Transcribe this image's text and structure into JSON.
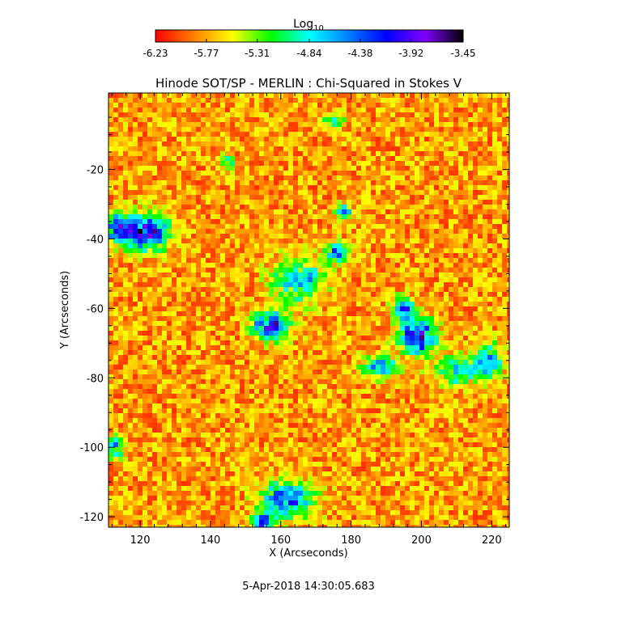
{
  "chart_data": {
    "type": "heatmap",
    "title": "Hinode SOT/SP - MERLIN : Chi-Squared in Stokes V",
    "xlabel": "X (Arcseconds)",
    "ylabel": "Y (Arcseconds)",
    "xlim": [
      111,
      225
    ],
    "ylim": [
      -123,
      2
    ],
    "x_ticks": [
      120,
      140,
      160,
      180,
      200,
      220
    ],
    "y_ticks": [
      -20,
      -40,
      -60,
      -80,
      -100,
      -120
    ],
    "colorbar": {
      "label": "Log",
      "label_subscript": "10",
      "range": [
        -6.23,
        -3.45
      ],
      "ticks": [
        "-6.23",
        "-5.77",
        "-5.31",
        "-4.84",
        "-4.38",
        "-3.92",
        "-3.45"
      ],
      "colormap": [
        "#ff0000",
        "#ff8000",
        "#ffff00",
        "#00ff00",
        "#00ffff",
        "#0080ff",
        "#0000ff",
        "#8000ff",
        "#000000"
      ]
    },
    "timestamp": "5-Apr-2018 14:30:05.683",
    "background_level": -5.8,
    "high_regions": [
      {
        "x": 122,
        "y": -38,
        "rx": 6,
        "ry": 5,
        "peak": -4.0
      },
      {
        "x": 114,
        "y": -37,
        "rx": 4,
        "ry": 4,
        "peak": -4.3
      },
      {
        "x": 157,
        "y": -65,
        "rx": 5,
        "ry": 4,
        "peak": -4.1
      },
      {
        "x": 165,
        "y": -52,
        "rx": 7,
        "ry": 6,
        "peak": -4.7
      },
      {
        "x": 176,
        "y": -44,
        "rx": 3,
        "ry": 3,
        "peak": -4.6
      },
      {
        "x": 199,
        "y": -68,
        "rx": 5,
        "ry": 5,
        "peak": -4.0
      },
      {
        "x": 195,
        "y": -60,
        "rx": 3,
        "ry": 3,
        "peak": -4.3
      },
      {
        "x": 188,
        "y": -77,
        "rx": 5,
        "ry": 3,
        "peak": -4.6
      },
      {
        "x": 210,
        "y": -78,
        "rx": 6,
        "ry": 4,
        "peak": -4.8
      },
      {
        "x": 219,
        "y": -75,
        "rx": 4,
        "ry": 5,
        "peak": -4.7
      },
      {
        "x": 162,
        "y": -115,
        "rx": 7,
        "ry": 5,
        "peak": -4.3
      },
      {
        "x": 155,
        "y": -122,
        "rx": 3,
        "ry": 3,
        "peak": -4.2
      },
      {
        "x": 178,
        "y": -32,
        "rx": 2,
        "ry": 2,
        "peak": -4.4
      },
      {
        "x": 145,
        "y": -18,
        "rx": 2,
        "ry": 2,
        "peak": -4.9
      },
      {
        "x": 175,
        "y": -6,
        "rx": 3,
        "ry": 2,
        "peak": -4.9
      },
      {
        "x": 113,
        "y": -100,
        "rx": 3,
        "ry": 3,
        "peak": -4.8
      }
    ]
  }
}
